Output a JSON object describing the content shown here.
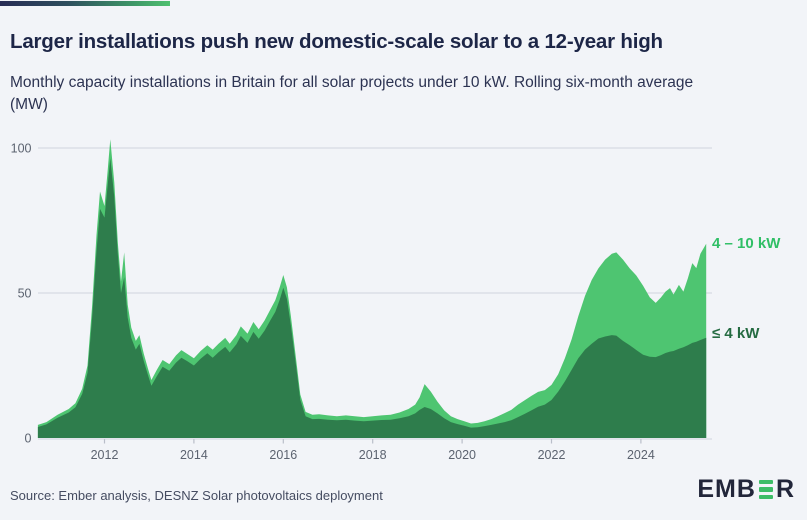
{
  "header": {
    "title": "Larger installations push new domestic-scale solar to a 12-year high",
    "subtitle": "Monthly capacity installations in Britain for all solar projects under 10 kW. Rolling six-month average (MW)"
  },
  "footer": {
    "source": "Source: Ember analysis, DESNZ Solar photovoltaics deployment",
    "logo_prefix": "EMB",
    "logo_suffix": "R"
  },
  "colors": {
    "background": "#f2f4f8",
    "title_text": "#1d2647",
    "subtitle_text": "#2c3352",
    "axis_text": "#5c6370",
    "gridline": "#d7dbe3",
    "area_dark_green": "#2e7d4c",
    "area_light_green": "#4ec571",
    "legend_light_text": "#30bf66",
    "legend_dark_text": "#256b42",
    "gradient_bar_start": "#272c55",
    "gradient_bar_end": "#4fc06f",
    "logo_text": "#22263a",
    "logo_bars": "#3dbd67"
  },
  "chart_data": {
    "type": "area",
    "stacked": true,
    "title": "Larger installations push new domestic-scale solar to a 12-year high",
    "subtitle": "Monthly capacity installations in Britain for all solar projects under 10 kW. Rolling six-month average (MW)",
    "xlabel": "",
    "ylabel": "MW",
    "ylim": [
      0,
      103
    ],
    "yticks": [
      0,
      50,
      100
    ],
    "xticks": [
      2012,
      2014,
      2016,
      2018,
      2020,
      2022,
      2024
    ],
    "x_range": [
      2010.51,
      2025.46
    ],
    "grid": "horizontal",
    "legend_position": "right-of-plot",
    "legend": [
      {
        "label": "4 – 10 kW",
        "color": "#4ec571"
      },
      {
        "label": "≤ 4 kW",
        "color": "#2e7d4c"
      }
    ],
    "x": [
      2010.51,
      2010.7,
      2010.95,
      2011.2,
      2011.35,
      2011.5,
      2011.62,
      2011.72,
      2011.82,
      2011.9,
      2012.0,
      2012.07,
      2012.13,
      2012.22,
      2012.3,
      2012.37,
      2012.44,
      2012.52,
      2012.6,
      2012.7,
      2012.78,
      2012.88,
      2012.97,
      2013.05,
      2013.17,
      2013.3,
      2013.45,
      2013.6,
      2013.72,
      2013.85,
      2014.0,
      2014.15,
      2014.3,
      2014.42,
      2014.55,
      2014.7,
      2014.8,
      2014.95,
      2015.05,
      2015.2,
      2015.33,
      2015.45,
      2015.58,
      2015.7,
      2015.82,
      2015.92,
      2016.0,
      2016.08,
      2016.17,
      2016.28,
      2016.38,
      2016.5,
      2016.65,
      2016.8,
      2017.0,
      2017.2,
      2017.4,
      2017.6,
      2017.8,
      2018.0,
      2018.2,
      2018.4,
      2018.6,
      2018.8,
      2018.95,
      2019.05,
      2019.16,
      2019.3,
      2019.45,
      2019.6,
      2019.75,
      2019.9,
      2020.05,
      2020.2,
      2020.35,
      2020.5,
      2020.65,
      2020.8,
      2020.95,
      2021.1,
      2021.25,
      2021.4,
      2021.55,
      2021.7,
      2021.85,
      2022.0,
      2022.15,
      2022.3,
      2022.45,
      2022.6,
      2022.75,
      2022.9,
      2023.05,
      2023.2,
      2023.35,
      2023.45,
      2023.6,
      2023.75,
      2023.9,
      2024.05,
      2024.2,
      2024.33,
      2024.45,
      2024.55,
      2024.65,
      2024.73,
      2024.85,
      2024.95,
      2025.05,
      2025.15,
      2025.24,
      2025.33,
      2025.46
    ],
    "series": [
      {
        "name": "≤ 4 kW",
        "color": "#2e7d4c",
        "values": [
          3.8,
          4.7,
          7.0,
          8.8,
          10.6,
          15.2,
          22.5,
          41.0,
          64.5,
          79.0,
          76.0,
          87.0,
          96.5,
          83.0,
          63.0,
          50.0,
          55.5,
          41.5,
          34.5,
          30.5,
          32.5,
          26.5,
          21.8,
          18.0,
          21.3,
          24.6,
          23.2,
          26.0,
          27.7,
          26.5,
          25.0,
          27.3,
          29.2,
          27.7,
          29.6,
          31.4,
          29.5,
          32.3,
          35.2,
          32.8,
          36.6,
          34.2,
          37.0,
          40.3,
          43.5,
          47.7,
          51.8,
          48.0,
          38.8,
          25.6,
          13.2,
          7.5,
          6.5,
          6.6,
          6.3,
          6.1,
          6.3,
          6.0,
          5.8,
          6.0,
          6.2,
          6.3,
          6.8,
          7.5,
          8.5,
          9.7,
          10.7,
          10.0,
          8.5,
          6.8,
          5.5,
          4.8,
          4.2,
          3.6,
          3.7,
          4.1,
          4.5,
          5.0,
          5.5,
          6.1,
          7.2,
          8.3,
          9.5,
          10.8,
          11.5,
          13.1,
          16.0,
          19.5,
          23.5,
          27.5,
          30.5,
          32.5,
          34.3,
          35.0,
          35.5,
          35.3,
          33.5,
          32.0,
          30.3,
          28.7,
          28.0,
          27.9,
          28.6,
          29.3,
          29.8,
          30.0,
          30.8,
          31.3,
          32.0,
          32.8,
          33.2,
          33.8,
          34.6
        ]
      },
      {
        "name": "4 – 10 kW",
        "color": "#4ec571",
        "values": [
          0.7,
          0.8,
          1.0,
          1.2,
          1.4,
          1.8,
          2.5,
          4.0,
          5.5,
          6.0,
          4.0,
          5.0,
          6.5,
          5.0,
          4.0,
          4.0,
          8.5,
          4.5,
          3.5,
          3.0,
          3.0,
          2.5,
          2.2,
          2.0,
          2.2,
          2.3,
          2.3,
          2.5,
          2.6,
          2.5,
          2.5,
          2.7,
          2.8,
          2.8,
          2.9,
          3.1,
          3.0,
          3.2,
          3.3,
          3.2,
          3.4,
          3.3,
          3.5,
          3.7,
          4.0,
          4.3,
          4.4,
          4.0,
          3.2,
          2.4,
          1.8,
          1.5,
          1.5,
          1.6,
          1.5,
          1.4,
          1.5,
          1.5,
          1.4,
          1.5,
          1.6,
          1.7,
          2.0,
          2.5,
          3.0,
          4.3,
          7.9,
          6.0,
          4.0,
          2.7,
          2.0,
          1.7,
          1.6,
          1.4,
          1.5,
          1.7,
          2.0,
          2.5,
          3.1,
          3.6,
          4.3,
          4.7,
          5.0,
          5.1,
          5.0,
          5.2,
          6.0,
          8.0,
          10.5,
          14.5,
          18.5,
          22.0,
          24.2,
          26.5,
          28.0,
          28.7,
          28.0,
          26.5,
          25.7,
          23.8,
          20.5,
          18.7,
          19.9,
          21.2,
          21.9,
          19.5,
          22.0,
          19.2,
          23.0,
          27.5,
          25.4,
          29.7,
          32.4
        ]
      }
    ]
  }
}
